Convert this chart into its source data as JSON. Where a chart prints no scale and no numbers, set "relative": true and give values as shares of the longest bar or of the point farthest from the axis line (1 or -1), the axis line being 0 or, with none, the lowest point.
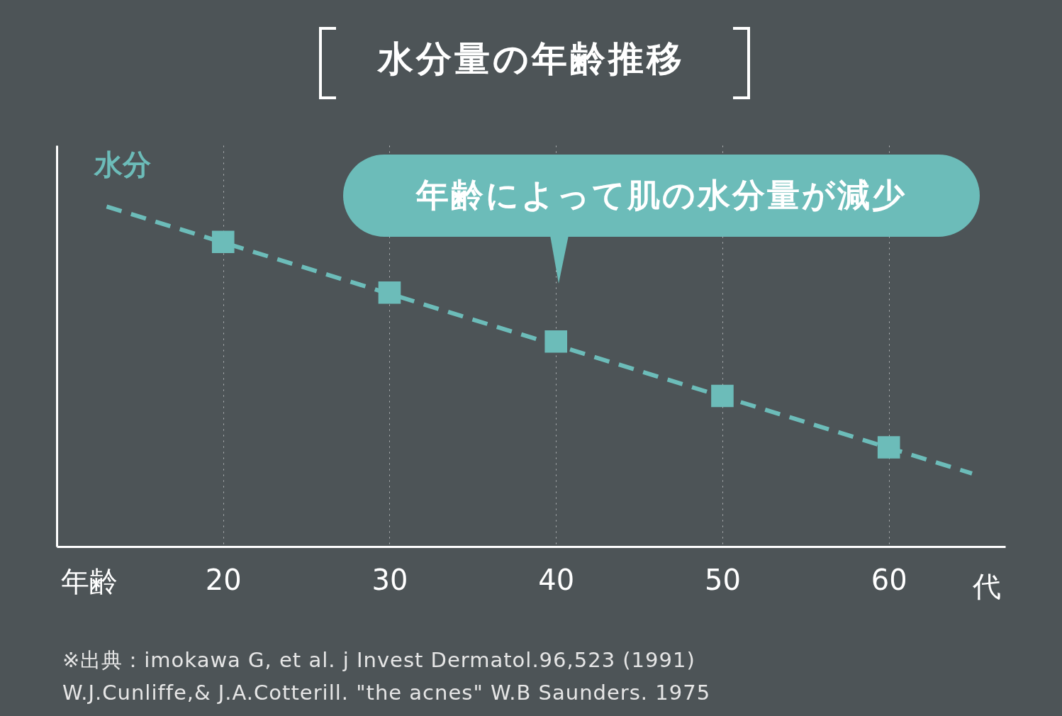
{
  "chart_data": {
    "type": "line",
    "title": "水分量の年齢推移",
    "xlabel": "年齢",
    "ylabel": "水分",
    "relative": true,
    "xlim": [
      10,
      67
    ],
    "xticks": [
      20,
      30,
      40,
      50,
      60
    ],
    "grid": "x",
    "line_style": "dashed",
    "series": [
      {
        "color": "#6cbcb9",
        "x": [
          13,
          65
        ],
        "values": [
          1,
          0.215
        ]
      },
      {
        "type": "scatter",
        "marker": "square",
        "color": "#6cbcb9",
        "x": [
          20,
          30,
          40,
          50,
          60
        ],
        "values": [
          0.896,
          0.747,
          0.603,
          0.443,
          0.292
        ]
      }
    ],
    "annotations": [
      "代",
      "年齢によって肌の水分量が減少",
      "※出典：imokawa G, et al. j Invest Dermatol.96,523 (1991)",
      "W.J.Cunliffe,& J.A.Cotterill. \"the acnes\" W.B Saunders. 1975"
    ]
  }
}
